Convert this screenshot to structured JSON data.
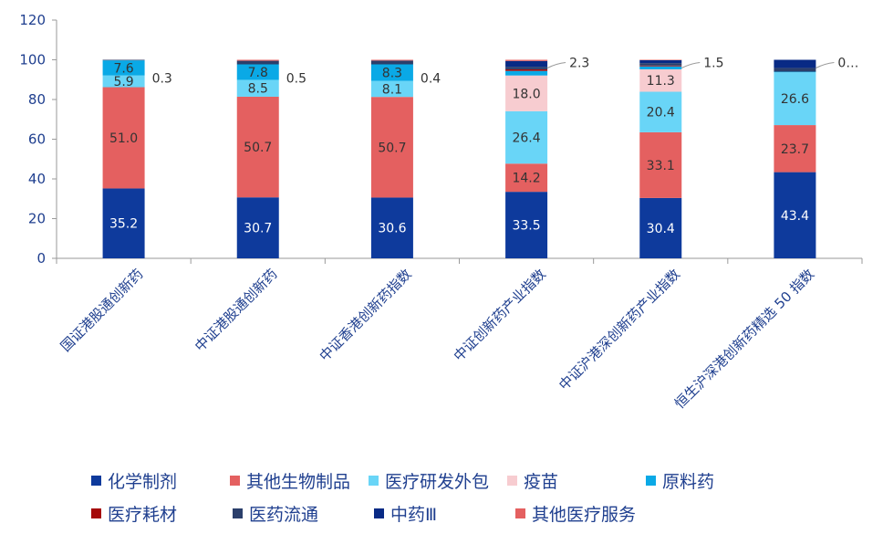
{
  "chart_data": {
    "type": "bar",
    "stacked": true,
    "categories": [
      "国证港股通创新药",
      "中证港股通创新药",
      "中证香港创新药指数",
      "中证创新药产业指数",
      "中证沪港深创新药产业指数",
      "恒生沪深港创新药精选 50 指数"
    ],
    "ylim": [
      0,
      120
    ],
    "yticks": [
      "0",
      "20",
      "40",
      "60",
      "80",
      "100",
      "120"
    ],
    "grid": false,
    "legend_position": "bottom",
    "series": [
      {
        "name": "化学制剂",
        "color": "#0e3a9c",
        "values": [
          35.2,
          30.7,
          30.6,
          33.5,
          30.4,
          43.4
        ],
        "labels": [
          "35.2",
          "30.7",
          "30.6",
          "33.5",
          "30.4",
          "43.4"
        ],
        "label_color": "#ffffff"
      },
      {
        "name": "其他生物制品",
        "color": "#e46060",
        "values": [
          51.0,
          50.7,
          50.7,
          14.2,
          33.1,
          23.7
        ],
        "labels": [
          "51.0",
          "50.7",
          "50.7",
          "14.2",
          "33.1",
          "23.7"
        ],
        "label_color": "#333333"
      },
      {
        "name": "医疗研发外包",
        "color": "#69d5f7",
        "values": [
          5.9,
          8.5,
          8.1,
          26.4,
          20.4,
          26.6
        ],
        "labels": [
          "5.9",
          "8.5",
          "8.1",
          "26.4",
          "20.4",
          "26.6"
        ],
        "label_color": "#333333"
      },
      {
        "name": "疫苗",
        "color": "#f7ccd0",
        "values": [
          0,
          0,
          0,
          18.0,
          11.3,
          0
        ],
        "labels": [
          "",
          "",
          "",
          "18.0",
          "11.3",
          ""
        ],
        "label_color": "#333333"
      },
      {
        "name": "原料药",
        "color": "#0aa9e6",
        "values": [
          7.6,
          7.8,
          8.3,
          2.3,
          1.5,
          0.3
        ],
        "labels": [
          "7.6",
          "7.8",
          "8.3",
          "",
          "",
          ""
        ],
        "label_color": "#333333"
      },
      {
        "name": "医疗耗材",
        "color": "#a50a0a",
        "values": [
          0,
          0,
          0,
          0.8,
          0.4,
          0
        ],
        "labels": [
          "",
          "",
          "",
          "",
          "",
          ""
        ],
        "label_color": "#333333"
      },
      {
        "name": "医药流通",
        "color": "#2b3f6b",
        "values": [
          0.3,
          1.8,
          1.9,
          1.2,
          1.2,
          1.9
        ],
        "labels": [
          "",
          "",
          "",
          "",
          "",
          ""
        ],
        "label_color": "#333333"
      },
      {
        "name": "中药Ⅲ",
        "color": "#082a85",
        "values": [
          0,
          0,
          0,
          3.0,
          1.6,
          4.1
        ],
        "labels": [
          "",
          "",
          "",
          "",
          "",
          ""
        ],
        "label_color": "#333333"
      },
      {
        "name": "其他医疗服务",
        "color": "#e46060",
        "values": [
          0,
          0.5,
          0.4,
          0.6,
          0.1,
          0
        ],
        "labels": [
          "",
          "",
          "",
          "",
          "",
          ""
        ],
        "label_color": "#333333"
      }
    ],
    "external_labels": [
      "0.3",
      "0.5",
      "0.4",
      "2.3",
      "1.5",
      "0…"
    ],
    "external_label_leader": [
      false,
      false,
      false,
      true,
      true,
      true
    ]
  },
  "legend": {
    "rows": [
      [
        {
          "label": "化学制剂",
          "color": "#0e3a9c"
        },
        {
          "label": "其他生物制品",
          "color": "#e46060"
        },
        {
          "label": "医疗研发外包",
          "color": "#69d5f7"
        },
        {
          "label": "疫苗",
          "color": "#f7ccd0"
        },
        {
          "label": "原料药",
          "color": "#0aa9e6"
        }
      ],
      [
        {
          "label": "医疗耗材",
          "color": "#a50a0a"
        },
        {
          "label": "医药流通",
          "color": "#2b3f6b"
        },
        {
          "label": "中药Ⅲ",
          "color": "#082a85"
        },
        {
          "label": "其他医疗服务",
          "color": "#e46060"
        }
      ]
    ]
  }
}
